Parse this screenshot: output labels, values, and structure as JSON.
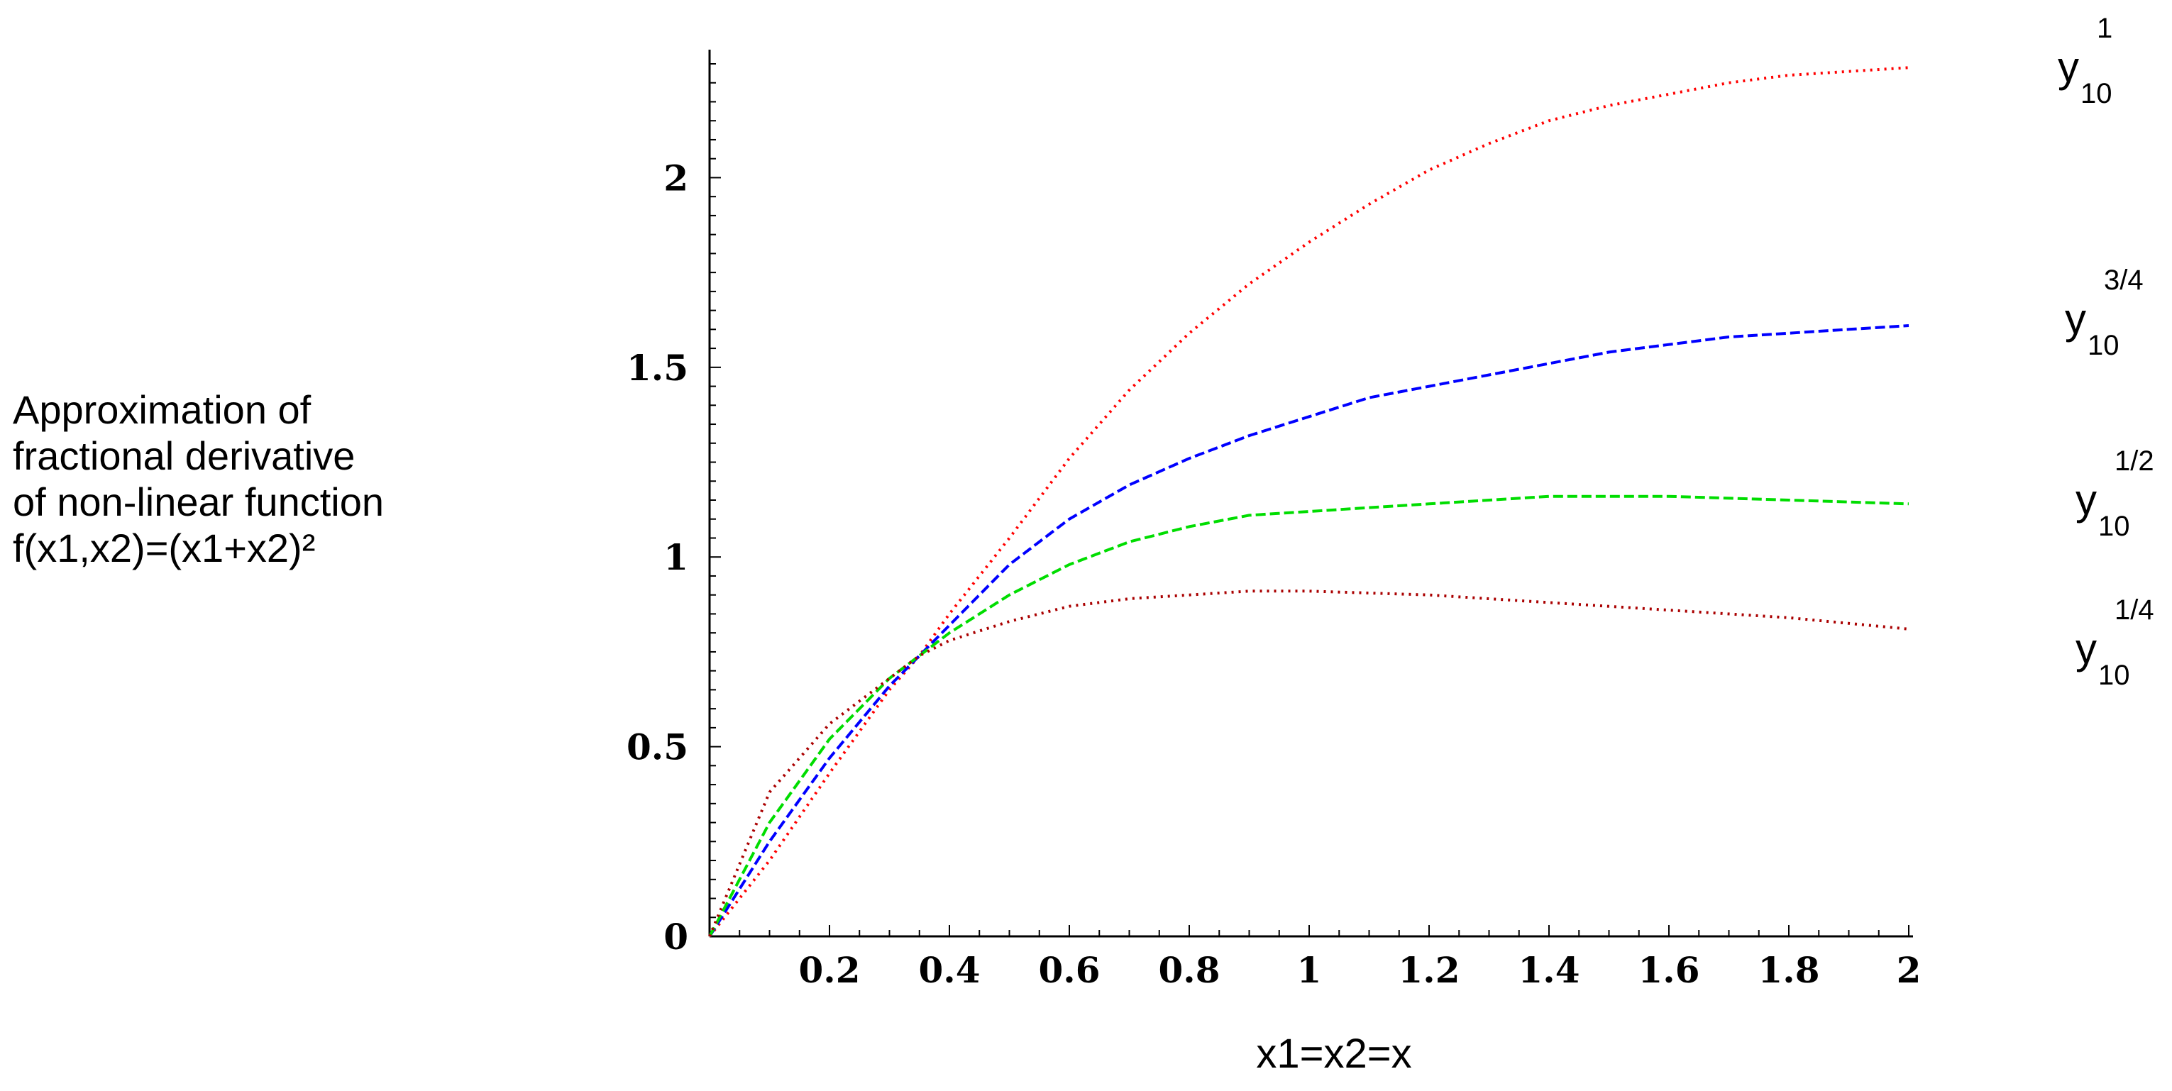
{
  "side_title": {
    "lines": [
      "Approximation of",
      "fractional derivative",
      "of non-linear function",
      "f(x1,x2)=(x1+x2)²"
    ]
  },
  "chart_data": {
    "type": "line",
    "xlabel": "x1=x2=x",
    "ylabel": "",
    "xlim": [
      0,
      2
    ],
    "ylim": [
      0,
      2.3
    ],
    "grid": false,
    "x_ticks": [
      0.2,
      0.4,
      0.6,
      0.8,
      1,
      1.2,
      1.4,
      1.6,
      1.8,
      2
    ],
    "x_tick_labels": [
      "0.2",
      "0.4",
      "0.6",
      "0.8",
      "1",
      "1.2",
      "1.4",
      "1.6",
      "1.8",
      "2"
    ],
    "y_ticks": [
      0,
      0.5,
      1,
      1.5,
      2
    ],
    "y_tick_labels": [
      "0",
      "0.5",
      "1",
      "1.5",
      "2"
    ],
    "series": [
      {
        "label_base": "y",
        "label_sub": "10",
        "label_sup": "1",
        "color": "#ff0000",
        "dash": "dotted",
        "x": [
          0,
          0.1,
          0.2,
          0.3,
          0.35,
          0.4,
          0.5,
          0.6,
          0.7,
          0.8,
          0.9,
          1.0,
          1.1,
          1.2,
          1.3,
          1.4,
          1.5,
          1.6,
          1.7,
          1.8,
          1.9,
          2.0
        ],
        "y": [
          0,
          0.2,
          0.43,
          0.65,
          0.74,
          0.85,
          1.05,
          1.26,
          1.44,
          1.59,
          1.72,
          1.83,
          1.93,
          2.02,
          2.09,
          2.15,
          2.19,
          2.22,
          2.25,
          2.27,
          2.28,
          2.29
        ]
      },
      {
        "label_base": "y",
        "label_sub": "10",
        "label_sup": "3/4",
        "color": "#0000ff",
        "dash": "dashed",
        "x": [
          0,
          0.1,
          0.2,
          0.3,
          0.35,
          0.4,
          0.5,
          0.6,
          0.7,
          0.8,
          0.9,
          1.0,
          1.1,
          1.2,
          1.3,
          1.4,
          1.5,
          1.6,
          1.7,
          1.8,
          1.9,
          2.0
        ],
        "y": [
          0,
          0.25,
          0.47,
          0.66,
          0.74,
          0.82,
          0.98,
          1.1,
          1.19,
          1.26,
          1.32,
          1.37,
          1.42,
          1.45,
          1.48,
          1.51,
          1.54,
          1.56,
          1.58,
          1.59,
          1.6,
          1.61
        ]
      },
      {
        "label_base": "y",
        "label_sub": "10",
        "label_sup": "1/2",
        "color": "#00dd00",
        "dash": "dashed",
        "x": [
          0,
          0.1,
          0.2,
          0.3,
          0.35,
          0.4,
          0.5,
          0.6,
          0.7,
          0.8,
          0.9,
          1.0,
          1.2,
          1.4,
          1.6,
          1.8,
          2.0
        ],
        "y": [
          0,
          0.3,
          0.52,
          0.68,
          0.74,
          0.8,
          0.9,
          0.98,
          1.04,
          1.08,
          1.11,
          1.12,
          1.14,
          1.16,
          1.16,
          1.15,
          1.14
        ]
      },
      {
        "label_base": "y",
        "label_sub": "10",
        "label_sup": "1/4",
        "color": "#aa0000",
        "dash": "dotted",
        "x": [
          0,
          0.1,
          0.2,
          0.3,
          0.35,
          0.4,
          0.5,
          0.6,
          0.7,
          0.8,
          0.9,
          1.0,
          1.2,
          1.4,
          1.6,
          1.8,
          2.0
        ],
        "y": [
          0,
          0.38,
          0.56,
          0.68,
          0.74,
          0.78,
          0.83,
          0.87,
          0.89,
          0.9,
          0.91,
          0.91,
          0.9,
          0.88,
          0.86,
          0.84,
          0.81
        ]
      }
    ]
  }
}
